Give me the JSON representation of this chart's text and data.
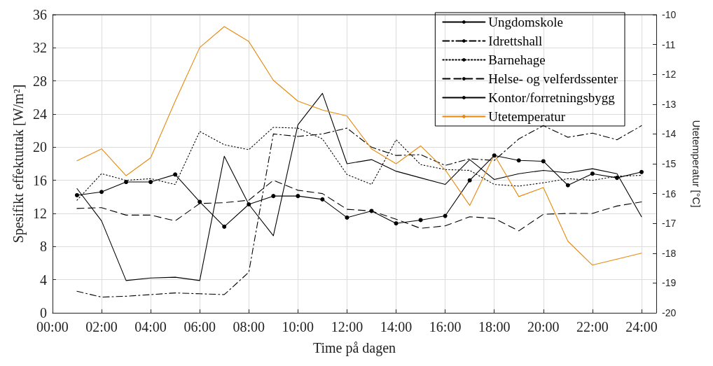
{
  "chart_data": {
    "type": "line",
    "xlabel": "Time på dagen",
    "ylabel": "Spesifikt effektuttak [W/m²]",
    "y2label": "Utetemperatur [°C]",
    "x": [
      1,
      2,
      3,
      4,
      5,
      6,
      7,
      8,
      9,
      10,
      11,
      12,
      13,
      14,
      15,
      16,
      17,
      18,
      19,
      20,
      21,
      22,
      23,
      24
    ],
    "xlim": [
      0,
      24.6
    ],
    "xticks": [
      {
        "value": 0,
        "label": "00:00"
      },
      {
        "value": 2,
        "label": "02:00"
      },
      {
        "value": 4,
        "label": "04:00"
      },
      {
        "value": 6,
        "label": "06:00"
      },
      {
        "value": 8,
        "label": "08:00"
      },
      {
        "value": 10,
        "label": "10:00"
      },
      {
        "value": 12,
        "label": "12:00"
      },
      {
        "value": 14,
        "label": "14:00"
      },
      {
        "value": 16,
        "label": "16:00"
      },
      {
        "value": 18,
        "label": "18:00"
      },
      {
        "value": 20,
        "label": "20:00"
      },
      {
        "value": 22,
        "label": "22:00"
      },
      {
        "value": 24,
        "label": "24:00"
      }
    ],
    "ylim": [
      0,
      36
    ],
    "yticks": [
      0,
      4,
      8,
      12,
      16,
      20,
      24,
      28,
      32,
      36
    ],
    "y2lim": [
      -20,
      -10
    ],
    "y2ticks": [
      -20,
      -19,
      -18,
      -17,
      -16,
      -15,
      -14,
      -13,
      -12,
      -11,
      -10
    ],
    "grid": true,
    "legend": "top right",
    "series": [
      {
        "name": "Ungdomskole",
        "color": "#000000",
        "line_style": "solid",
        "marker": "none",
        "values": [
          15.0,
          11.1,
          3.9,
          4.2,
          4.3,
          3.9,
          18.9,
          13.1,
          9.3,
          22.7,
          26.5,
          18.0,
          18.5,
          17.1,
          16.3,
          15.5,
          18.5,
          16.1,
          16.8,
          17.2,
          16.9,
          17.4,
          16.8,
          11.6
        ]
      },
      {
        "name": "Idrettshall",
        "color": "#000000",
        "line_style": "dashdot",
        "marker": "none",
        "values": [
          2.6,
          1.9,
          2.0,
          2.2,
          2.4,
          2.3,
          2.2,
          4.9,
          21.6,
          21.3,
          21.6,
          22.3,
          20.0,
          19.0,
          19.1,
          17.8,
          18.6,
          18.4,
          21.0,
          22.6,
          21.2,
          21.7,
          20.9,
          22.6
        ]
      },
      {
        "name": "Barnehage",
        "color": "#000000",
        "line_style": "dotted",
        "marker": "none",
        "values": [
          13.6,
          16.8,
          16.0,
          16.2,
          15.5,
          21.9,
          20.3,
          19.7,
          22.4,
          22.3,
          21.0,
          16.7,
          15.5,
          20.9,
          17.9,
          17.3,
          17.2,
          15.5,
          15.3,
          15.7,
          16.2,
          16.0,
          16.5,
          16.6
        ]
      },
      {
        "name": "Helse- og velferdssenter",
        "color": "#000000",
        "line_style": "dashed",
        "marker": "none",
        "values": [
          12.6,
          12.7,
          11.8,
          11.8,
          11.1,
          13.2,
          13.3,
          13.6,
          16.0,
          14.8,
          14.4,
          12.5,
          12.3,
          11.3,
          10.2,
          10.5,
          11.6,
          11.4,
          9.9,
          11.9,
          12.0,
          12.0,
          12.9,
          13.4
        ]
      },
      {
        "name": "Kontor/forretningsbygg",
        "color": "#000000",
        "line_style": "solid",
        "marker": "circle",
        "values": [
          14.2,
          14.6,
          15.8,
          15.8,
          16.7,
          13.4,
          10.4,
          13.1,
          14.1,
          14.1,
          13.7,
          11.5,
          12.3,
          10.8,
          11.2,
          11.7,
          16.0,
          19.0,
          18.4,
          18.3,
          15.4,
          16.8,
          16.3,
          17.0
        ]
      },
      {
        "name": "Utetemperatur",
        "color": "#e8890c",
        "line_style": "solid",
        "marker": "none",
        "axis": "y2",
        "values": [
          -14.9,
          -14.5,
          -15.4,
          -14.8,
          -12.9,
          -11.1,
          -10.4,
          -10.9,
          -12.2,
          -12.9,
          -13.2,
          -13.4,
          -14.5,
          -15.0,
          -14.4,
          -15.2,
          -16.4,
          -14.7,
          -16.1,
          -15.8,
          -17.6,
          -18.4,
          -18.2,
          -18.0
        ]
      }
    ]
  }
}
